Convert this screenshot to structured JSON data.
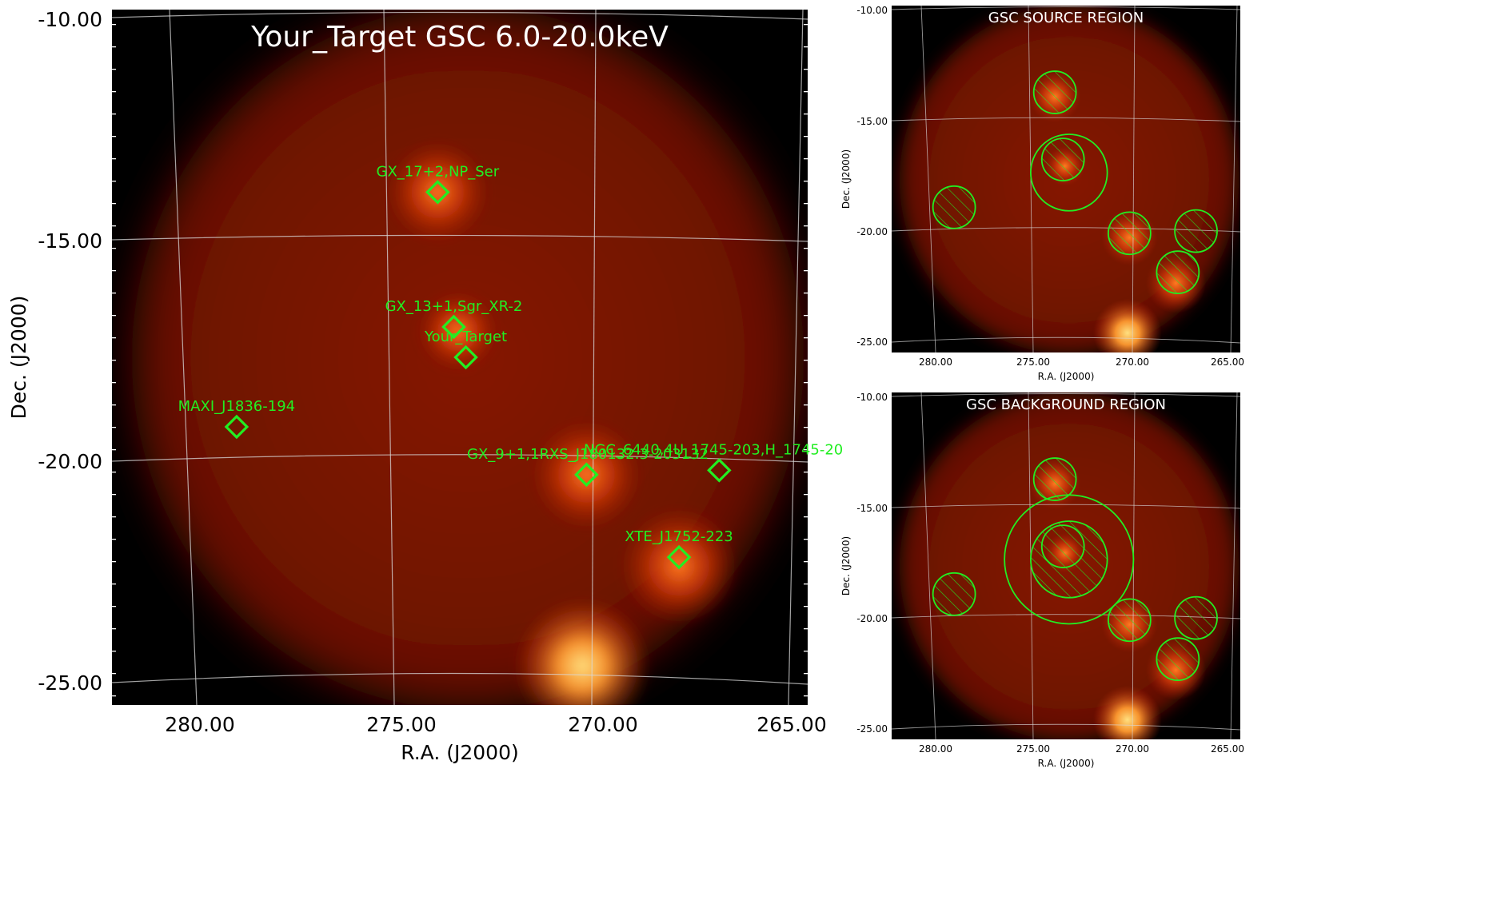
{
  "main_panel": {
    "title": "Your_Target GSC 6.0-20.0keV",
    "xlabel": "R.A. (J2000)",
    "ylabel": "Dec. (J2000)",
    "x_ticks": [
      "280.00",
      "275.00",
      "270.00",
      "265.00"
    ],
    "y_ticks": [
      "-10.00",
      "-15.00",
      "-20.00",
      "-25.00"
    ],
    "sources": [
      {
        "name": "GX_17+2,NP_Ser",
        "ra": 274.0,
        "dec": -14.0
      },
      {
        "name": "GX_13+1,Sgr_XR-2",
        "ra": 273.6,
        "dec": -17.1
      },
      {
        "name": "Your_Target",
        "ra": 273.3,
        "dec": -17.8
      },
      {
        "name": "MAXI_J1836-194",
        "ra": 279.0,
        "dec": -19.4
      },
      {
        "name": "GX_9+1,1RXS_J180132.3-203132",
        "ra": 270.3,
        "dec": -20.5
      },
      {
        "name": "NGC_6440,4U_1745-203,H_1745-20",
        "ra": 267.0,
        "dec": -20.4
      },
      {
        "name": "XTE_J1752-223",
        "ra": 268.0,
        "dec": -22.4
      }
    ]
  },
  "source_panel": {
    "title": "GSC SOURCE REGION",
    "xlabel": "R.A. (J2000)",
    "ylabel": "Dec. (J2000)",
    "x_ticks": [
      "280.00",
      "275.00",
      "270.00",
      "265.00"
    ],
    "y_ticks": [
      "-10.00",
      "-15.00",
      "-20.00",
      "-25.00"
    ]
  },
  "background_panel": {
    "title": "GSC BACKGROUND REGION",
    "xlabel": "R.A. (J2000)",
    "ylabel": "Dec. (J2000)",
    "x_ticks": [
      "280.00",
      "275.00",
      "270.00",
      "265.00"
    ],
    "y_ticks": [
      "-10.00",
      "-15.00",
      "-20.00",
      "-25.00"
    ]
  },
  "colors": {
    "region_green": "#22ee22",
    "background": "#000000",
    "glow_red": "#8a1a05",
    "glow_bright": "#ffb040"
  }
}
